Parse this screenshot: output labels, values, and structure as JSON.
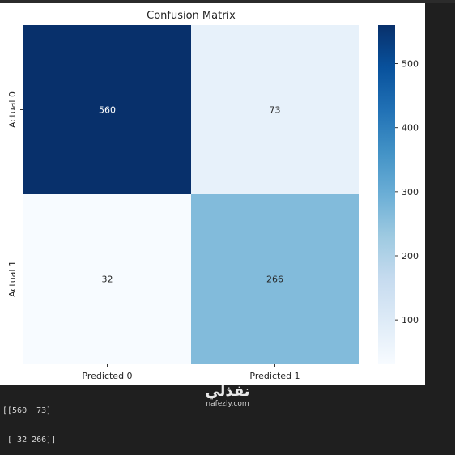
{
  "chart_data": {
    "type": "heatmap",
    "title": "Confusion Matrix",
    "x_tick_labels": [
      "Predicted 0",
      "Predicted 1"
    ],
    "y_tick_labels": [
      "Actual 0",
      "Actual 1"
    ],
    "values": [
      [
        560,
        73
      ],
      [
        32,
        266
      ]
    ],
    "colormap": "Blues",
    "color_range": [
      32,
      560
    ],
    "colorbar_ticks": [
      100,
      200,
      300,
      400,
      500
    ]
  },
  "console": {
    "lines": [
      "[[560  73]",
      " [ 32 266]]"
    ]
  },
  "watermark": {
    "text": "نفذلي",
    "url": "nafezly.com"
  }
}
